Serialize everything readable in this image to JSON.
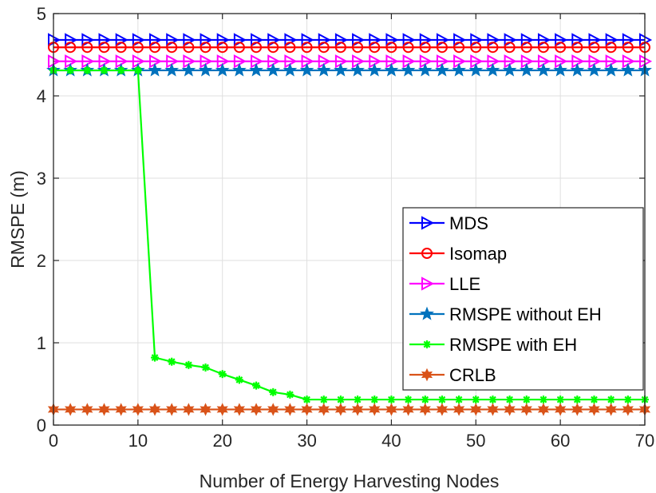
{
  "chart_data": {
    "type": "line",
    "title": "",
    "xlabel": "Number of Energy Harvesting Nodes",
    "ylabel": "RMSPE (m)",
    "xlim": [
      0,
      70
    ],
    "ylim": [
      0,
      5
    ],
    "xticks": [
      0,
      10,
      20,
      30,
      40,
      50,
      60,
      70
    ],
    "yticks": [
      0,
      1,
      2,
      3,
      4,
      5
    ],
    "grid": true,
    "legend_position": "right",
    "x": [
      0,
      2,
      4,
      6,
      8,
      10,
      12,
      14,
      16,
      18,
      20,
      22,
      24,
      26,
      28,
      30,
      32,
      34,
      36,
      38,
      40,
      42,
      44,
      46,
      48,
      50,
      52,
      54,
      56,
      58,
      60,
      62,
      64,
      66,
      68,
      70
    ],
    "series": [
      {
        "name": "MDS",
        "color": "#0000ff",
        "marker": "triangle-right",
        "values": [
          4.68,
          4.68,
          4.68,
          4.68,
          4.68,
          4.68,
          4.68,
          4.68,
          4.68,
          4.68,
          4.68,
          4.68,
          4.68,
          4.68,
          4.68,
          4.68,
          4.68,
          4.68,
          4.68,
          4.68,
          4.68,
          4.68,
          4.68,
          4.68,
          4.68,
          4.68,
          4.68,
          4.68,
          4.68,
          4.68,
          4.68,
          4.68,
          4.68,
          4.68,
          4.68,
          4.68
        ]
      },
      {
        "name": "Isomap",
        "color": "#ff0000",
        "marker": "circle",
        "values": [
          4.59,
          4.59,
          4.59,
          4.59,
          4.59,
          4.59,
          4.59,
          4.59,
          4.59,
          4.59,
          4.59,
          4.59,
          4.59,
          4.59,
          4.59,
          4.59,
          4.59,
          4.59,
          4.59,
          4.59,
          4.59,
          4.59,
          4.59,
          4.59,
          4.59,
          4.59,
          4.59,
          4.59,
          4.59,
          4.59,
          4.59,
          4.59,
          4.59,
          4.59,
          4.59,
          4.59
        ]
      },
      {
        "name": "LLE",
        "color": "#ff00ff",
        "marker": "triangle-right",
        "values": [
          4.42,
          4.42,
          4.42,
          4.42,
          4.42,
          4.42,
          4.42,
          4.42,
          4.42,
          4.42,
          4.42,
          4.42,
          4.42,
          4.42,
          4.42,
          4.42,
          4.42,
          4.42,
          4.42,
          4.42,
          4.42,
          4.42,
          4.42,
          4.42,
          4.42,
          4.42,
          4.42,
          4.42,
          4.42,
          4.42,
          4.42,
          4.42,
          4.42,
          4.42,
          4.42,
          4.42
        ]
      },
      {
        "name": "RMSPE without EH",
        "color": "#0072bd",
        "marker": "star",
        "values": [
          4.31,
          4.31,
          4.31,
          4.31,
          4.31,
          4.31,
          4.31,
          4.31,
          4.31,
          4.31,
          4.31,
          4.31,
          4.31,
          4.31,
          4.31,
          4.31,
          4.31,
          4.31,
          4.31,
          4.31,
          4.31,
          4.31,
          4.31,
          4.31,
          4.31,
          4.31,
          4.31,
          4.31,
          4.31,
          4.31,
          4.31,
          4.31,
          4.31,
          4.31,
          4.31,
          4.31
        ]
      },
      {
        "name": "RMSPE with EH",
        "color": "#00ff00",
        "marker": "asterisk",
        "values": [
          4.31,
          4.31,
          4.31,
          4.31,
          4.31,
          4.31,
          0.82,
          0.77,
          0.73,
          0.7,
          0.62,
          0.55,
          0.48,
          0.4,
          0.37,
          0.31,
          0.31,
          0.31,
          0.31,
          0.31,
          0.31,
          0.31,
          0.31,
          0.31,
          0.31,
          0.31,
          0.31,
          0.31,
          0.31,
          0.31,
          0.31,
          0.31,
          0.31,
          0.31,
          0.31,
          0.31
        ]
      },
      {
        "name": "CRLB",
        "color": "#d95319",
        "marker": "hexagram",
        "values": [
          0.19,
          0.19,
          0.19,
          0.19,
          0.19,
          0.19,
          0.19,
          0.19,
          0.19,
          0.19,
          0.19,
          0.19,
          0.19,
          0.19,
          0.19,
          0.19,
          0.19,
          0.19,
          0.19,
          0.19,
          0.19,
          0.19,
          0.19,
          0.19,
          0.19,
          0.19,
          0.19,
          0.19,
          0.19,
          0.19,
          0.19,
          0.19,
          0.19,
          0.19,
          0.19,
          0.19
        ]
      }
    ]
  }
}
